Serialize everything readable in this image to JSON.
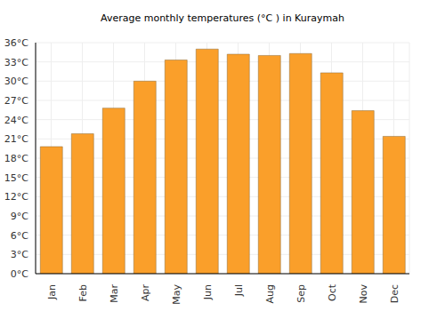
{
  "chart_data": {
    "type": "bar",
    "title": "Average monthly temperatures (°C ) in Kuraymah",
    "categories": [
      "Jan",
      "Feb",
      "Mar",
      "Apr",
      "May",
      "Jun",
      "Jul",
      "Aug",
      "Sep",
      "Oct",
      "Nov",
      "Dec"
    ],
    "values": [
      19.8,
      21.8,
      25.8,
      30.0,
      33.3,
      35.0,
      34.2,
      34.0,
      34.3,
      31.3,
      25.4,
      21.4
    ],
    "color": "#fa9f2a",
    "ylim": [
      0,
      36
    ],
    "yticks": [
      {
        "value": 0,
        "label": "0°C"
      },
      {
        "value": 3,
        "label": "3°C"
      },
      {
        "value": 6,
        "label": "6°C"
      },
      {
        "value": 9,
        "label": "9°C"
      },
      {
        "value": 12,
        "label": "12°C"
      },
      {
        "value": 15,
        "label": "15°C"
      },
      {
        "value": 18,
        "label": "18°C"
      },
      {
        "value": 21,
        "label": "21°C"
      },
      {
        "value": 24,
        "label": "24°C"
      },
      {
        "value": 27,
        "label": "27°C"
      },
      {
        "value": 30,
        "label": "30°C"
      },
      {
        "value": 33,
        "label": "33°C"
      },
      {
        "value": 36,
        "label": "36°C"
      }
    ],
    "grid": true
  }
}
